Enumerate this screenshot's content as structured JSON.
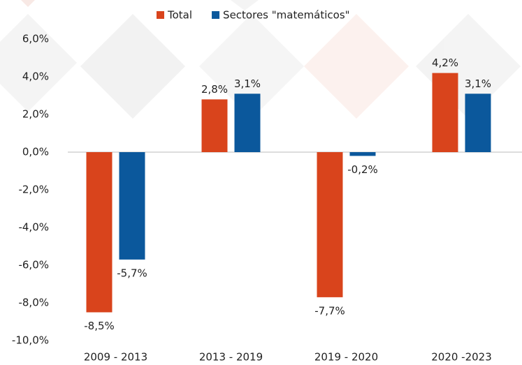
{
  "chart_data": {
    "type": "bar",
    "categories": [
      "2009 - 2013",
      "2013 - 2019",
      "2019 - 2020",
      "2020 -2023"
    ],
    "series": [
      {
        "name": "Total",
        "color": "#d9441c",
        "values": [
          -8.5,
          2.8,
          -7.7,
          4.2
        ],
        "value_labels": [
          "-8,5%",
          "2,8%",
          "-7,7%",
          "4,2%"
        ]
      },
      {
        "name": "Sectores \"matemáticos\"",
        "color": "#0b589c",
        "values": [
          -5.7,
          3.1,
          -0.2,
          3.1
        ],
        "value_labels": [
          "-5,7%",
          "3,1%",
          "-0,2%",
          "3,1%"
        ]
      }
    ],
    "ylim": [
      -10,
      6
    ],
    "yticks": [
      {
        "value": -10,
        "label": "-10,0%"
      },
      {
        "value": -8,
        "label": "-8,0%"
      },
      {
        "value": -6,
        "label": "-6,0%"
      },
      {
        "value": -4,
        "label": "-4,0%"
      },
      {
        "value": -2,
        "label": "-2,0%"
      },
      {
        "value": 0,
        "label": "0,0%"
      },
      {
        "value": 2,
        "label": "2,0%"
      },
      {
        "value": 4,
        "label": "4,0%"
      },
      {
        "value": 6,
        "label": "6,0%"
      }
    ],
    "legend": "top"
  }
}
